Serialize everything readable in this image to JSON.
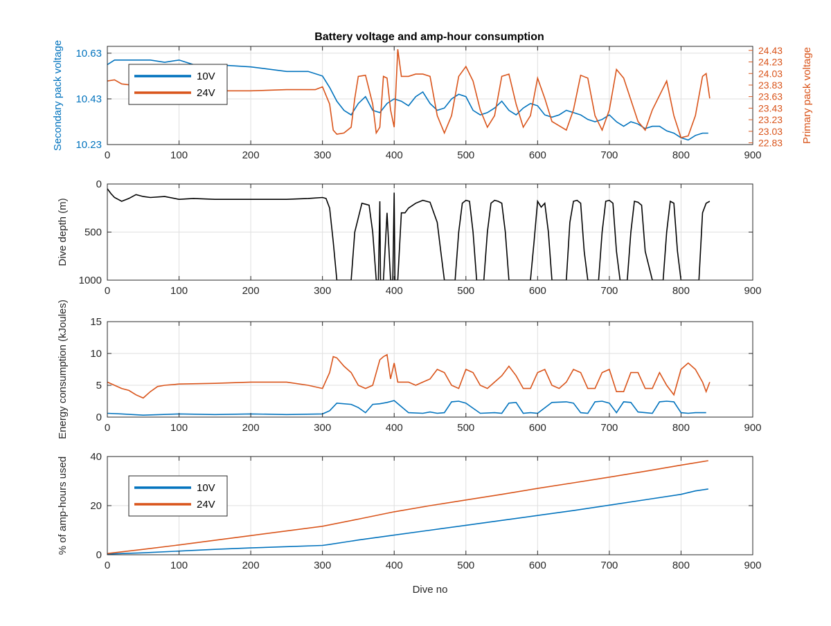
{
  "title": "Battery voltage and amp-hour consumption",
  "colors": {
    "series_10v": "#0072BD",
    "series_24v": "#D95319",
    "depth": "#000000",
    "axis": "#262626",
    "grid": "#DFDFDF"
  },
  "chart_data": [
    {
      "type": "line",
      "title": "Battery voltage and amp-hour consumption",
      "xlabel": "",
      "xlim": [
        0,
        900
      ],
      "xticks": [
        0,
        100,
        200,
        300,
        400,
        500,
        600,
        700,
        800,
        900
      ],
      "ylabel": "Secondary pack voltage",
      "ylim": [
        10.23,
        10.66
      ],
      "yticks": [
        10.23,
        10.43,
        10.63
      ],
      "y2label": "Primary pack voltage",
      "y2lim": [
        22.8,
        24.5
      ],
      "y2ticks": [
        22.83,
        23.03,
        23.23,
        23.43,
        23.63,
        23.83,
        24.03,
        24.23,
        24.43
      ],
      "grid": true,
      "legend": "top-left",
      "series": [
        {
          "name": "10V",
          "axis": "left",
          "x": [
            0,
            10,
            20,
            40,
            60,
            80,
            100,
            120,
            150,
            200,
            250,
            280,
            300,
            310,
            320,
            330,
            340,
            350,
            360,
            370,
            380,
            390,
            400,
            410,
            420,
            430,
            440,
            450,
            460,
            470,
            480,
            490,
            500,
            510,
            520,
            530,
            540,
            550,
            560,
            570,
            580,
            590,
            600,
            610,
            620,
            630,
            640,
            650,
            660,
            670,
            680,
            690,
            700,
            710,
            720,
            730,
            740,
            750,
            760,
            770,
            780,
            790,
            800,
            810,
            820,
            830,
            838
          ],
          "y": [
            10.58,
            10.6,
            10.6,
            10.6,
            10.6,
            10.59,
            10.6,
            10.58,
            10.58,
            10.57,
            10.55,
            10.55,
            10.53,
            10.48,
            10.42,
            10.38,
            10.36,
            10.41,
            10.44,
            10.38,
            10.37,
            10.41,
            10.43,
            10.42,
            10.4,
            10.44,
            10.46,
            10.41,
            10.38,
            10.39,
            10.43,
            10.45,
            10.44,
            10.38,
            10.36,
            10.37,
            10.39,
            10.42,
            10.38,
            10.36,
            10.39,
            10.41,
            10.4,
            10.36,
            10.35,
            10.36,
            10.38,
            10.37,
            10.36,
            10.34,
            10.33,
            10.34,
            10.36,
            10.33,
            10.31,
            10.33,
            10.32,
            10.3,
            10.31,
            10.31,
            10.29,
            10.28,
            10.26,
            10.25,
            10.27,
            10.28,
            10.28
          ]
        },
        {
          "name": "24V",
          "axis": "right",
          "x": [
            0,
            10,
            20,
            40,
            60,
            80,
            100,
            150,
            200,
            250,
            290,
            300,
            310,
            315,
            320,
            330,
            340,
            345,
            350,
            360,
            370,
            375,
            380,
            385,
            390,
            395,
            400,
            405,
            410,
            420,
            430,
            440,
            450,
            460,
            470,
            480,
            490,
            500,
            510,
            520,
            530,
            540,
            550,
            560,
            570,
            580,
            590,
            600,
            610,
            620,
            640,
            650,
            660,
            670,
            680,
            690,
            700,
            710,
            720,
            740,
            750,
            760,
            780,
            790,
            800,
            810,
            820,
            830,
            835,
            840
          ],
          "y": [
            23.9,
            23.92,
            23.85,
            23.82,
            23.8,
            23.8,
            23.75,
            23.73,
            23.73,
            23.75,
            23.75,
            23.8,
            23.5,
            23.05,
            22.98,
            23.0,
            23.1,
            23.6,
            23.98,
            24.0,
            23.5,
            23.0,
            23.1,
            23.98,
            23.95,
            23.4,
            23.1,
            24.45,
            23.98,
            23.98,
            24.02,
            24.02,
            23.98,
            23.3,
            23.0,
            23.3,
            23.98,
            24.15,
            23.9,
            23.4,
            23.1,
            23.3,
            23.98,
            24.02,
            23.5,
            23.1,
            23.3,
            23.95,
            23.6,
            23.2,
            23.05,
            23.4,
            24.0,
            23.95,
            23.3,
            23.05,
            23.4,
            24.1,
            23.95,
            23.2,
            23.05,
            23.4,
            23.9,
            23.3,
            22.92,
            22.95,
            23.3,
            23.98,
            24.03,
            23.6
          ]
        }
      ]
    },
    {
      "type": "line",
      "xlabel": "",
      "xlim": [
        0,
        900
      ],
      "xticks": [
        0,
        100,
        200,
        300,
        400,
        500,
        600,
        700,
        800,
        900
      ],
      "ylabel": "Dive depth (m)",
      "ylim": [
        0,
        1000
      ],
      "yreversed": true,
      "yticks": [
        0,
        500,
        1000
      ],
      "grid": true,
      "series": [
        {
          "x": [
            0,
            5,
            10,
            15,
            20,
            30,
            40,
            50,
            60,
            80,
            100,
            120,
            150,
            200,
            250,
            280,
            300,
            305,
            310,
            315,
            320,
            330,
            340,
            345,
            355,
            360,
            365,
            370,
            375,
            378,
            380,
            381,
            382,
            385,
            390,
            395,
            398,
            400,
            401,
            402,
            405,
            410,
            415,
            420,
            430,
            440,
            450,
            460,
            465,
            470,
            480,
            485,
            490,
            495,
            500,
            505,
            510,
            515,
            520,
            525,
            530,
            535,
            540,
            545,
            550,
            555,
            560,
            565,
            570,
            575,
            590,
            595,
            600,
            605,
            610,
            615,
            620,
            625,
            640,
            645,
            650,
            655,
            660,
            665,
            670,
            680,
            685,
            690,
            695,
            700,
            705,
            710,
            715,
            720,
            725,
            730,
            735,
            740,
            745,
            750,
            760,
            770,
            775,
            780,
            785,
            790,
            795,
            800,
            820,
            825,
            830,
            835,
            840
          ],
          "y": [
            50,
            100,
            140,
            160,
            180,
            150,
            110,
            130,
            140,
            130,
            160,
            150,
            160,
            160,
            160,
            150,
            140,
            150,
            250,
            600,
            1000,
            1000,
            1000,
            500,
            200,
            210,
            220,
            500,
            1000,
            1000,
            180,
            1000,
            1000,
            1000,
            300,
            1000,
            1000,
            90,
            1000,
            1000,
            1000,
            300,
            300,
            250,
            200,
            170,
            190,
            400,
            700,
            1000,
            1000,
            1000,
            500,
            200,
            170,
            180,
            500,
            1000,
            1000,
            1000,
            500,
            200,
            170,
            180,
            200,
            500,
            1000,
            1000,
            1000,
            1000,
            1000,
            600,
            180,
            240,
            200,
            500,
            1000,
            1000,
            1000,
            400,
            180,
            170,
            200,
            700,
            1000,
            1000,
            1000,
            500,
            180,
            170,
            200,
            700,
            1000,
            1000,
            1000,
            500,
            180,
            190,
            220,
            700,
            1000,
            1000,
            1000,
            500,
            180,
            200,
            700,
            1000,
            1000,
            1000,
            300,
            200,
            180
          ]
        }
      ]
    },
    {
      "type": "line",
      "xlabel": "",
      "xlim": [
        0,
        900
      ],
      "xticks": [
        0,
        100,
        200,
        300,
        400,
        500,
        600,
        700,
        800,
        900
      ],
      "ylabel": "Energy consumption (kJoules)",
      "ylim": [
        0,
        15
      ],
      "yticks": [
        0,
        5,
        10,
        15
      ],
      "grid": true,
      "series": [
        {
          "name": "10V",
          "x": [
            0,
            20,
            50,
            100,
            150,
            200,
            250,
            300,
            310,
            320,
            340,
            350,
            360,
            370,
            380,
            390,
            400,
            420,
            440,
            450,
            460,
            470,
            480,
            490,
            500,
            520,
            540,
            550,
            560,
            570,
            580,
            590,
            600,
            620,
            640,
            650,
            660,
            670,
            680,
            690,
            700,
            710,
            720,
            730,
            740,
            750,
            760,
            770,
            780,
            790,
            800,
            810,
            820,
            830,
            835
          ],
          "y": [
            0.6,
            0.5,
            0.3,
            0.5,
            0.4,
            0.5,
            0.4,
            0.5,
            1.0,
            2.2,
            2.0,
            1.5,
            0.7,
            2.0,
            2.1,
            2.3,
            2.6,
            0.7,
            0.6,
            0.8,
            0.6,
            0.7,
            2.4,
            2.5,
            2.2,
            0.6,
            0.7,
            0.6,
            2.2,
            2.3,
            0.6,
            0.7,
            0.6,
            2.3,
            2.4,
            2.2,
            0.7,
            0.6,
            2.4,
            2.5,
            2.2,
            0.7,
            2.4,
            2.3,
            0.8,
            0.7,
            0.6,
            2.4,
            2.5,
            2.4,
            0.7,
            0.6,
            0.7,
            0.7,
            0.7
          ]
        },
        {
          "name": "24V",
          "x": [
            0,
            10,
            20,
            30,
            40,
            50,
            60,
            70,
            80,
            100,
            150,
            200,
            250,
            280,
            300,
            310,
            315,
            320,
            330,
            340,
            350,
            360,
            370,
            380,
            385,
            390,
            395,
            400,
            405,
            410,
            420,
            430,
            440,
            450,
            460,
            470,
            480,
            490,
            500,
            510,
            520,
            530,
            540,
            550,
            560,
            570,
            580,
            590,
            600,
            610,
            620,
            630,
            640,
            650,
            660,
            670,
            680,
            690,
            700,
            710,
            720,
            730,
            740,
            750,
            760,
            770,
            780,
            790,
            800,
            810,
            820,
            830,
            835,
            840
          ],
          "y": [
            5.5,
            5.0,
            4.5,
            4.2,
            3.5,
            3.0,
            4.0,
            4.8,
            5.0,
            5.2,
            5.3,
            5.5,
            5.5,
            5.0,
            4.5,
            7.0,
            9.5,
            9.3,
            8.0,
            7.0,
            5.0,
            4.5,
            5.0,
            9.0,
            9.5,
            9.8,
            6.0,
            8.5,
            5.5,
            5.5,
            5.5,
            5.0,
            5.5,
            6.0,
            7.5,
            7.0,
            5.0,
            4.5,
            7.5,
            7.0,
            5.0,
            4.5,
            5.5,
            6.5,
            8.0,
            6.5,
            4.5,
            4.5,
            7.0,
            7.5,
            5.0,
            4.5,
            5.5,
            7.5,
            7.0,
            4.5,
            4.5,
            7.0,
            7.5,
            4.0,
            4.0,
            7.0,
            7.0,
            4.5,
            4.5,
            7.0,
            5.0,
            3.5,
            7.5,
            8.5,
            7.5,
            5.5,
            4.0,
            5.5
          ]
        }
      ]
    },
    {
      "type": "line",
      "xlabel": "Dive no",
      "xlim": [
        0,
        900
      ],
      "xticks": [
        0,
        100,
        200,
        300,
        400,
        500,
        600,
        700,
        800,
        900
      ],
      "ylabel": "% of amp-hours used",
      "ylim": [
        0,
        40
      ],
      "yticks": [
        0,
        20,
        40
      ],
      "grid": true,
      "legend": "top-left",
      "series": [
        {
          "name": "10V",
          "x": [
            0,
            50,
            100,
            150,
            200,
            250,
            300,
            310,
            350,
            400,
            450,
            500,
            550,
            600,
            650,
            700,
            750,
            800,
            820,
            838
          ],
          "y": [
            0.3,
            0.8,
            1.5,
            2.2,
            2.8,
            3.3,
            3.8,
            4.2,
            6.0,
            8.0,
            10.0,
            12.0,
            14.0,
            16.0,
            18.0,
            20.2,
            22.4,
            24.6,
            26.0,
            26.8
          ]
        },
        {
          "name": "24V",
          "x": [
            0,
            50,
            100,
            150,
            200,
            250,
            300,
            350,
            400,
            450,
            500,
            550,
            600,
            650,
            700,
            750,
            800,
            838
          ],
          "y": [
            0.5,
            2.2,
            4.0,
            5.9,
            7.8,
            9.7,
            11.6,
            14.5,
            17.5,
            20.0,
            22.3,
            24.6,
            27.0,
            29.3,
            31.6,
            34.0,
            36.5,
            38.3
          ]
        }
      ]
    }
  ]
}
